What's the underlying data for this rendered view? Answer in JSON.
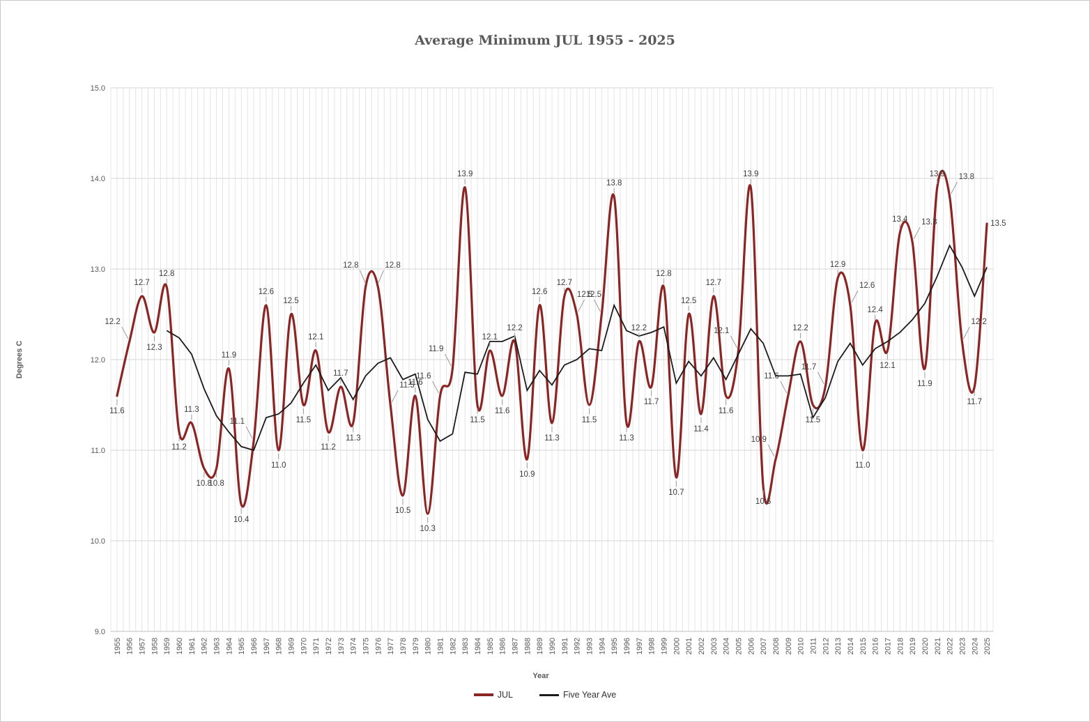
{
  "chart": {
    "title": "Average Minimum JUL 1955 - 2025",
    "ylabel": "Degrees C",
    "xlabel": "Year",
    "legend": [
      {
        "label": "JUL",
        "color": "#8b2523"
      },
      {
        "label": "Five Year Ave",
        "color": "#1a1a1a"
      }
    ]
  },
  "chart_data": {
    "type": "line",
    "title": "Average Minimum JUL 1955 - 2025",
    "xlabel": "Year",
    "ylabel": "Degrees C",
    "ylim": [
      9.0,
      15.0
    ],
    "yticks": [
      9.0,
      10.0,
      11.0,
      12.0,
      13.0,
      14.0,
      15.0
    ],
    "grid": {
      "horizontal_interval": 1.0,
      "vertical_interval_years": 0.5
    },
    "legend_position": "bottom",
    "x": [
      1955,
      1956,
      1957,
      1958,
      1959,
      1960,
      1961,
      1962,
      1963,
      1964,
      1965,
      1966,
      1967,
      1968,
      1969,
      1970,
      1971,
      1972,
      1973,
      1974,
      1975,
      1976,
      1977,
      1978,
      1979,
      1980,
      1981,
      1982,
      1983,
      1984,
      1985,
      1986,
      1987,
      1988,
      1989,
      1990,
      1991,
      1992,
      1993,
      1994,
      1995,
      1996,
      1997,
      1998,
      1999,
      2000,
      2001,
      2002,
      2003,
      2004,
      2005,
      2006,
      2007,
      2008,
      2009,
      2010,
      2011,
      2012,
      2013,
      2014,
      2015,
      2016,
      2017,
      2018,
      2019,
      2020,
      2021,
      2022,
      2023,
      2024,
      2025
    ],
    "series": [
      {
        "name": "JUL",
        "color": "#8b2523",
        "style": "smooth",
        "stroke_width": 3.2,
        "data_labels": true,
        "values": [
          11.6,
          12.2,
          12.7,
          12.3,
          12.8,
          11.2,
          11.3,
          10.8,
          10.8,
          11.9,
          10.4,
          11.1,
          12.6,
          11.0,
          12.5,
          11.5,
          12.1,
          11.2,
          11.7,
          11.3,
          12.8,
          12.8,
          11.5,
          10.5,
          11.6,
          10.3,
          11.6,
          11.9,
          13.9,
          11.5,
          12.1,
          11.6,
          12.2,
          10.9,
          12.6,
          11.3,
          12.7,
          12.5,
          11.5,
          12.5,
          13.8,
          11.3,
          12.2,
          11.7,
          12.8,
          10.7,
          12.5,
          11.4,
          12.7,
          11.6,
          12.1,
          13.9,
          10.6,
          10.9,
          11.6,
          12.2,
          11.5,
          11.7,
          12.9,
          12.6,
          11.0,
          12.4,
          12.1,
          13.4,
          13.3,
          11.9,
          13.9,
          13.8,
          12.2,
          11.7,
          13.5
        ]
      },
      {
        "name": "Five Year Ave",
        "color": "#1a1a1a",
        "style": "straight",
        "stroke_width": 1.8,
        "data_labels": false,
        "values": [
          null,
          null,
          null,
          null,
          12.32,
          12.24,
          12.06,
          11.68,
          11.38,
          11.2,
          11.04,
          11.0,
          11.36,
          11.4,
          11.52,
          11.74,
          11.94,
          11.66,
          11.8,
          11.56,
          11.82,
          11.96,
          12.02,
          11.78,
          11.84,
          11.34,
          11.1,
          11.18,
          11.86,
          11.84,
          12.2,
          12.2,
          12.26,
          11.66,
          11.88,
          11.72,
          11.94,
          12.0,
          12.12,
          12.1,
          12.6,
          12.32,
          12.26,
          12.3,
          12.36,
          11.74,
          11.98,
          11.82,
          12.02,
          11.78,
          12.06,
          12.34,
          12.18,
          11.82,
          11.82,
          11.84,
          11.36,
          11.58,
          11.98,
          12.18,
          11.94,
          12.12,
          12.2,
          12.3,
          12.44,
          12.62,
          12.92,
          13.26,
          13.02,
          12.7,
          13.02
        ]
      }
    ]
  }
}
